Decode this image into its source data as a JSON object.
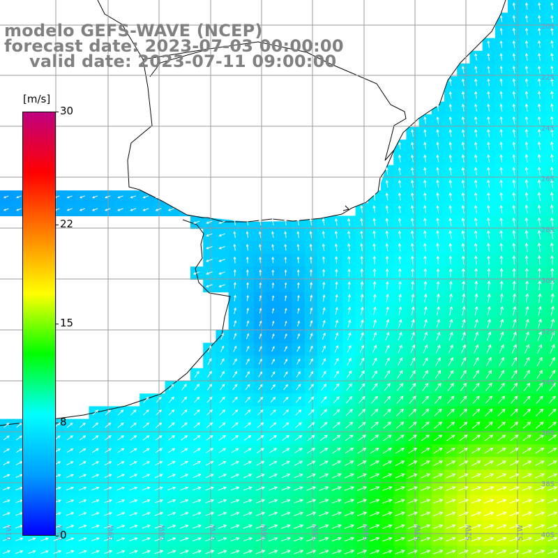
{
  "title": {
    "line1": "modelo GEFS-WAVE (NCEP)",
    "line2": "forecast date: 2023-07-03 00:00:00",
    "line3": "valid date: 2023-07-11 09:00:00"
  },
  "colorbar": {
    "unit": "[m/s]",
    "min": 0,
    "max": 30,
    "ticks": [
      {
        "value": 0,
        "label": "0"
      },
      {
        "value": 8,
        "label": "8"
      },
      {
        "value": 15,
        "label": "15"
      },
      {
        "value": 22,
        "label": "22"
      },
      {
        "value": 30,
        "label": "30"
      }
    ],
    "colors": [
      "#0000ff",
      "#00a0ff",
      "#00ffff",
      "#00ff00",
      "#ffff00",
      "#ff8000",
      "#ff0000",
      "#c00080"
    ]
  },
  "map": {
    "variable": "wind speed",
    "grid_color": "#999999",
    "coast_color": "#000000",
    "lat_labels": [
      "20S",
      "22S",
      "24S",
      "26S",
      "28S",
      "30S",
      "32S",
      "34S",
      "36S",
      "38S",
      "40S"
    ],
    "lon_labels": [
      "61W",
      "60W",
      "59W",
      "58W",
      "57W",
      "56W",
      "55W",
      "54W",
      "53W",
      "52W",
      "51W"
    ]
  }
}
